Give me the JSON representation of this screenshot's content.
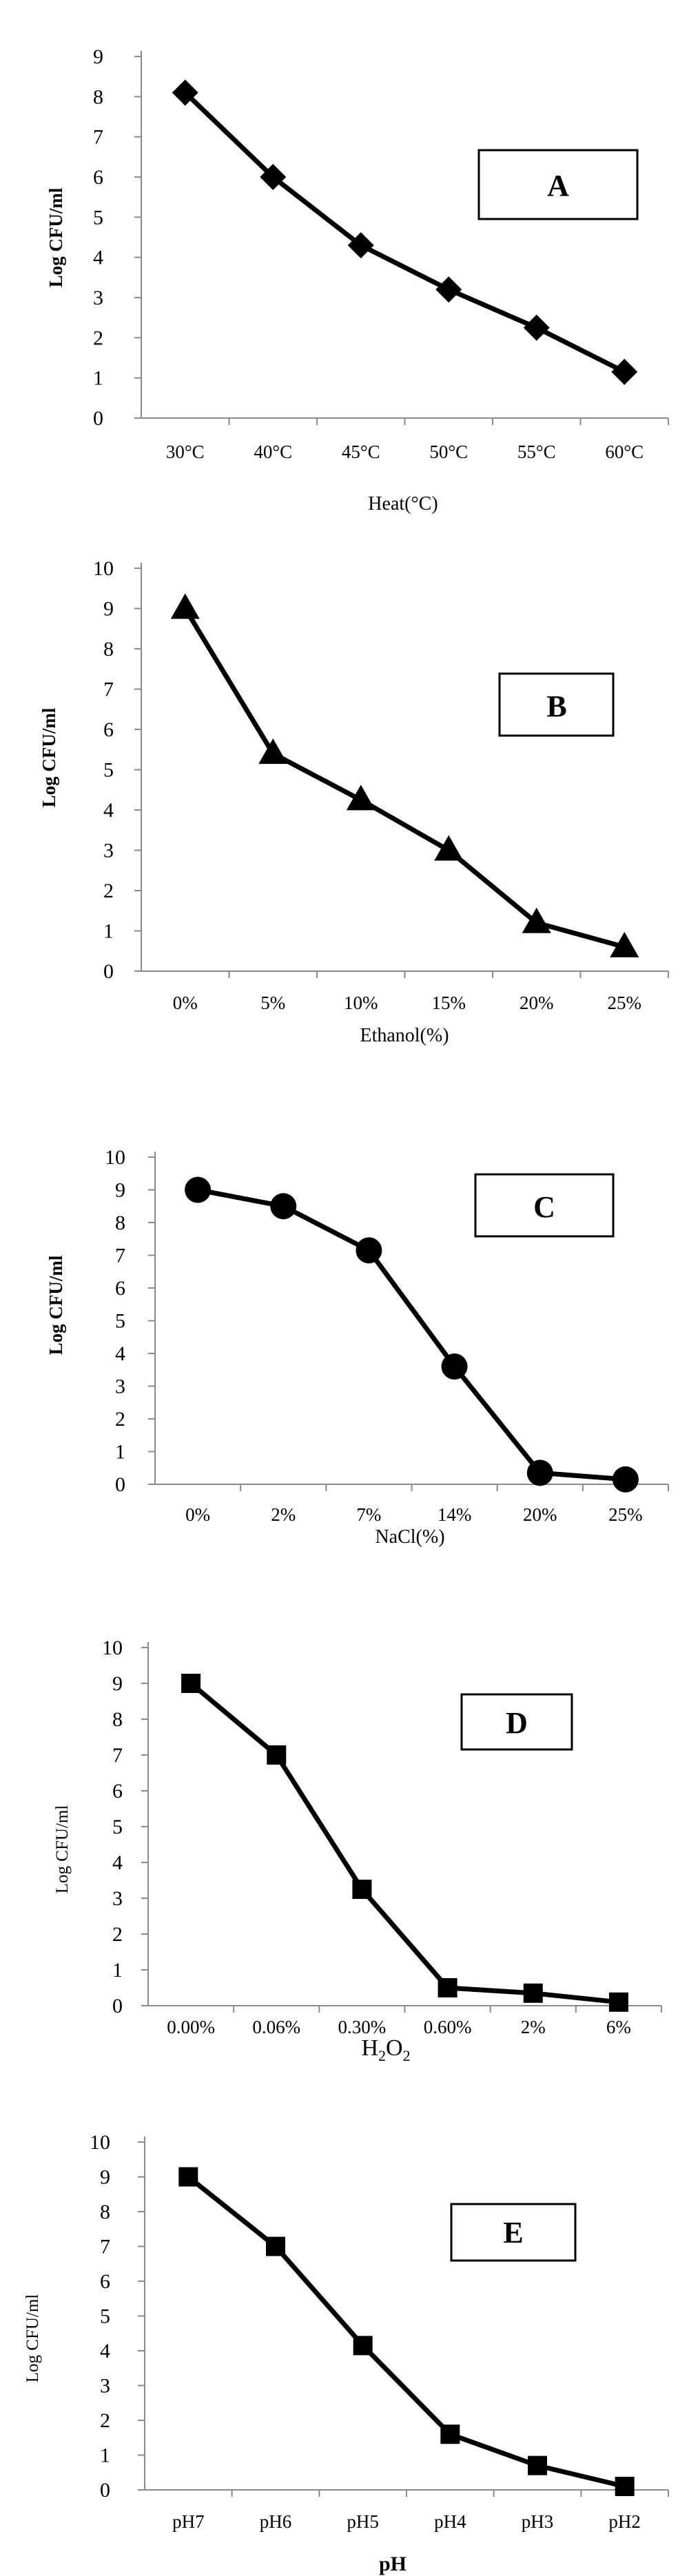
{
  "chart_data": [
    {
      "type": "line",
      "panel_label": "A",
      "categories": [
        "30°C",
        "40°C",
        "45°C",
        "50°C",
        "55°C",
        "60°C"
      ],
      "series": [
        {
          "values": [
            8.1,
            6.0,
            4.3,
            3.2,
            2.25,
            1.15
          ]
        }
      ],
      "marker": "diamond",
      "xlabel": "Heat(°C)",
      "ylabel": "Log CFU/ml",
      "ylim": [
        0,
        9
      ],
      "yticks": [
        "0",
        "1",
        "2",
        "3",
        "4",
        "5",
        "6",
        "7",
        "8",
        "9"
      ],
      "grid": false,
      "legend": "none"
    },
    {
      "type": "line",
      "panel_label": "B",
      "categories": [
        "0%",
        "5%",
        "10%",
        "15%",
        "20%",
        "25%"
      ],
      "series": [
        {
          "values": [
            9.0,
            5.4,
            4.25,
            3.0,
            1.2,
            0.6
          ]
        }
      ],
      "marker": "triangle",
      "xlabel": "Ethanol(%)",
      "ylabel": "Log CFU/ml",
      "ylim": [
        0,
        10
      ],
      "yticks": [
        "0",
        "1",
        "2",
        "3",
        "4",
        "5",
        "6",
        "7",
        "8",
        "9",
        "10"
      ],
      "grid": false,
      "legend": "none"
    },
    {
      "type": "line",
      "panel_label": "C",
      "categories": [
        "0%",
        "2%",
        "7%",
        "14%",
        "20%",
        "25%"
      ],
      "series": [
        {
          "values": [
            9.0,
            8.5,
            7.15,
            3.6,
            0.35,
            0.15
          ]
        }
      ],
      "marker": "circle",
      "xlabel": "NaCl(%)",
      "ylabel": "Log CFU/ml",
      "ylim": [
        0,
        10
      ],
      "yticks": [
        "0",
        "1",
        "2",
        "3",
        "4",
        "5",
        "6",
        "7",
        "8",
        "9",
        "10"
      ],
      "grid": false,
      "legend": "none"
    },
    {
      "type": "line",
      "panel_label": "D",
      "categories": [
        "0.00%",
        "0.06%",
        "0.30%",
        "0.60%",
        "2%",
        "6%"
      ],
      "series": [
        {
          "values": [
            9.0,
            7.0,
            3.25,
            0.5,
            0.35,
            0.1
          ]
        }
      ],
      "marker": "square",
      "xlabel_main": "H",
      "xlabel_sub1": "2",
      "xlabel_mid": "O",
      "xlabel_sub2": "2",
      "ylabel": "Log CFU/ml",
      "ylim": [
        0,
        10
      ],
      "yticks": [
        "0",
        "1",
        "2",
        "3",
        "4",
        "5",
        "6",
        "7",
        "8",
        "9",
        "10"
      ],
      "grid": false,
      "legend": "none"
    },
    {
      "type": "line",
      "panel_label": "E",
      "categories": [
        "pH7",
        "pH6",
        "pH5",
        "pH4",
        "pH3",
        "pH2"
      ],
      "series": [
        {
          "values": [
            9.0,
            7.0,
            4.15,
            1.6,
            0.7,
            0.1
          ]
        }
      ],
      "marker": "square",
      "xlabel": "pH",
      "ylabel": "Log CFU/ml",
      "ylim": [
        0,
        10
      ],
      "yticks": [
        "0",
        "1",
        "2",
        "3",
        "4",
        "5",
        "6",
        "7",
        "8",
        "9",
        "10"
      ],
      "grid": false,
      "legend": "none"
    }
  ]
}
